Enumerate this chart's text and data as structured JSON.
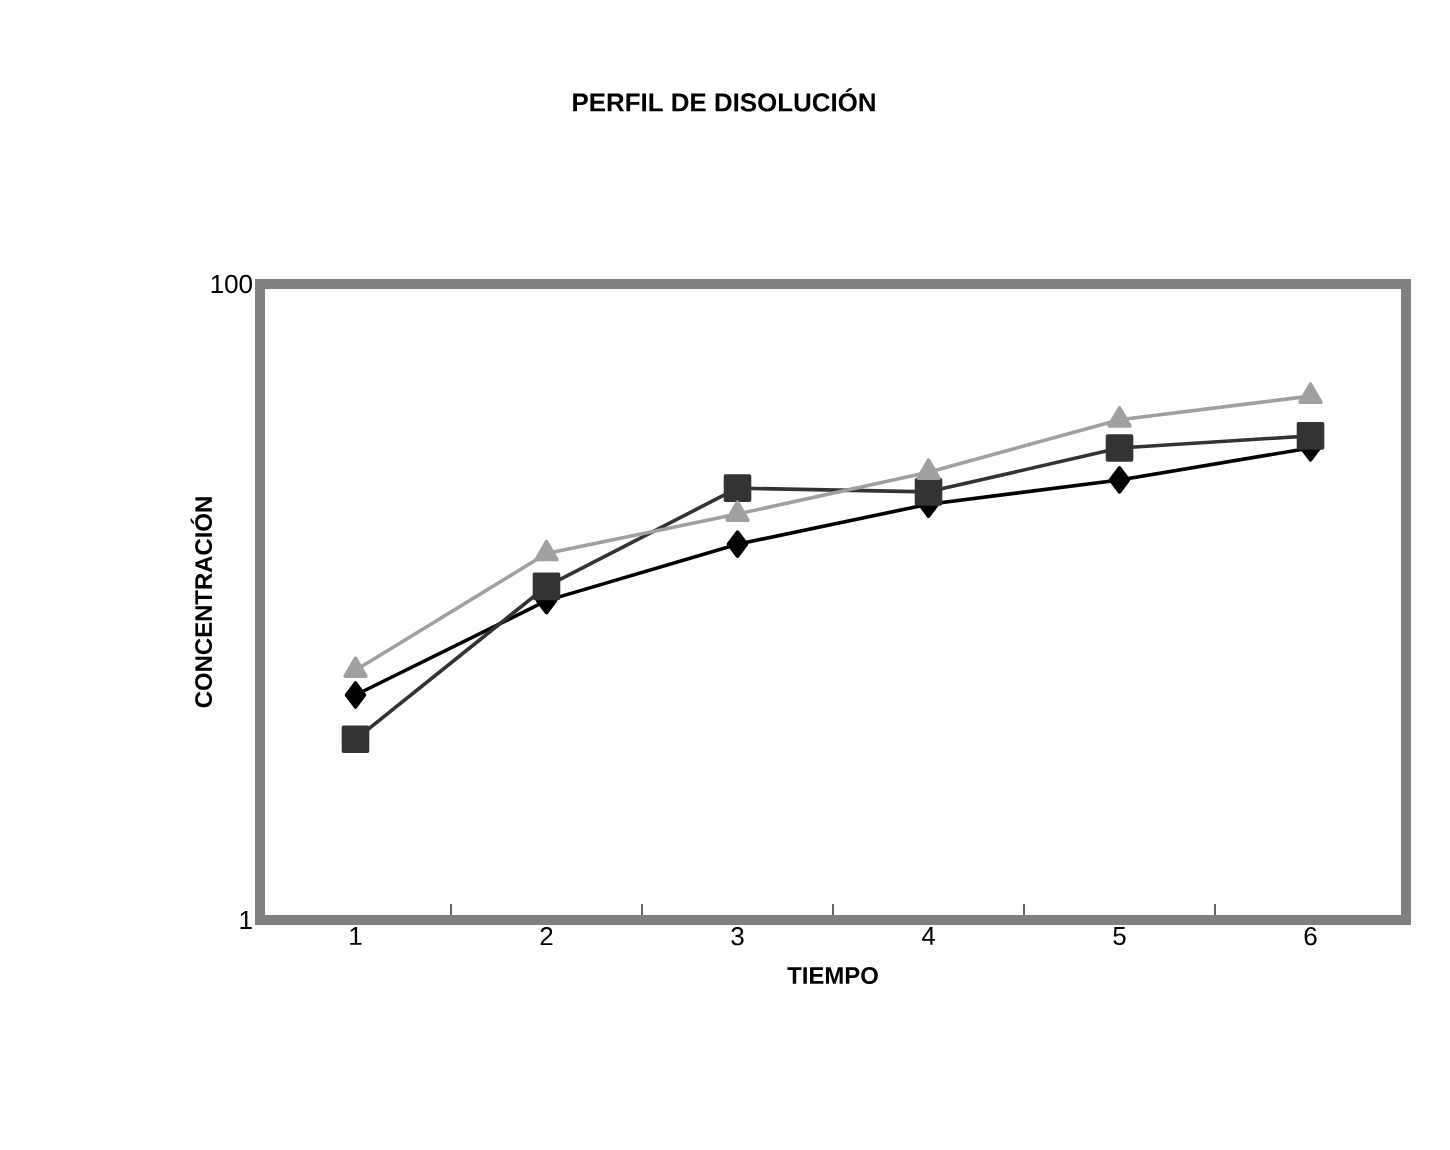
{
  "chart_data": {
    "type": "line",
    "title": "PERFIL DE DISOLUCIÓN",
    "xlabel": "TIEMPO",
    "ylabel": "CONCENTRACIÓN",
    "categories": [
      "1",
      "2",
      "3",
      "4",
      "5",
      "6"
    ],
    "series": [
      {
        "color": "#000000",
        "marker": "diamond",
        "values": [
          5.1,
          10.1,
          15.2,
          20.3,
          24.2,
          30.5
        ]
      },
      {
        "color": "#333333",
        "marker": "square",
        "values": [
          3.7,
          11.2,
          22.8,
          22.2,
          30.5,
          33.3
        ]
      },
      {
        "color": "#a0a0a0",
        "marker": "triangle",
        "values": [
          6.1,
          14.2,
          18.9,
          25.6,
          37.4,
          44.4
        ]
      }
    ],
    "log": "y",
    "ylim": [
      1,
      100
    ],
    "yticks": [
      1,
      100
    ],
    "line_style": "solid"
  }
}
